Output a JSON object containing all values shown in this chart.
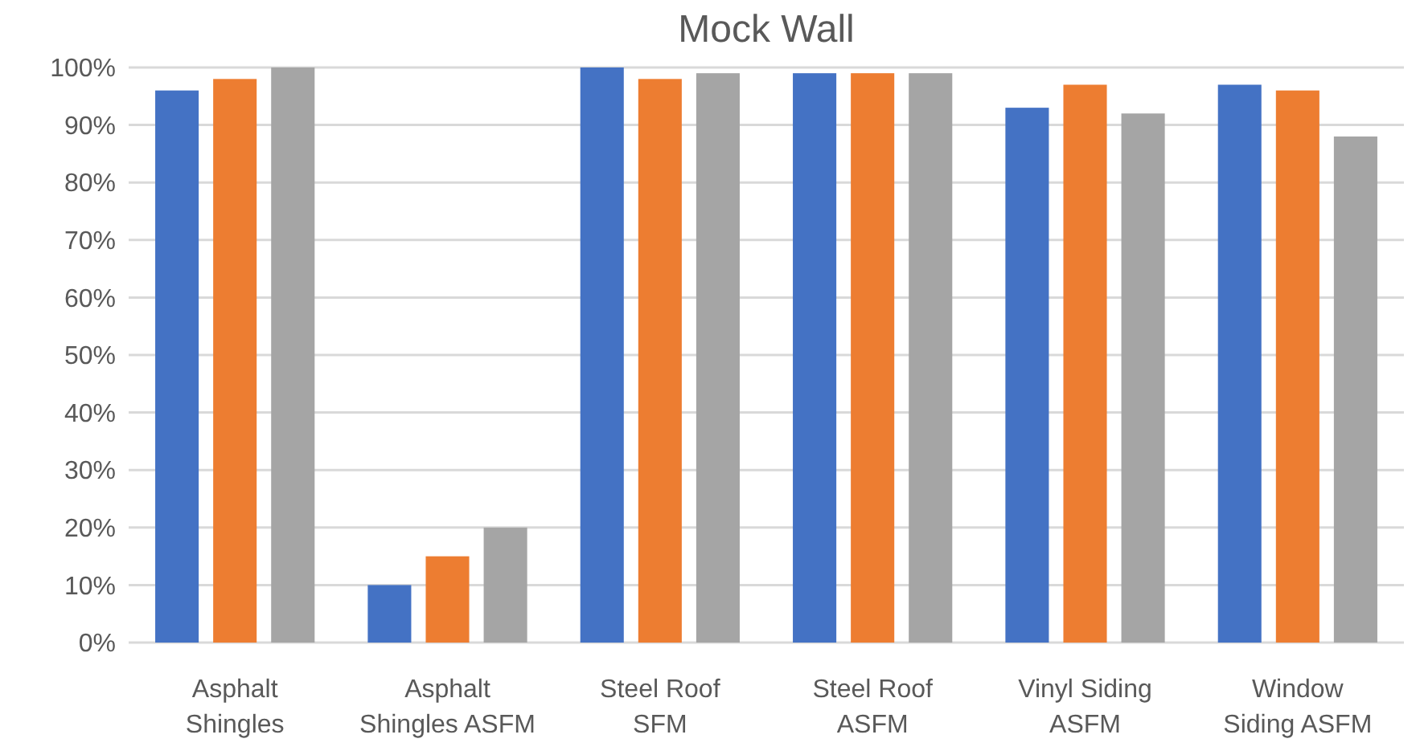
{
  "chart_data": {
    "type": "bar",
    "title": "Mock Wall",
    "categories": [
      "Asphalt\nShingles",
      "Asphalt\nShingles ASFM",
      "Steel Roof\nSFM",
      "Steel Roof\nASFM",
      "Vinyl Siding\nASFM",
      "Window\nSiding ASFM"
    ],
    "series": [
      {
        "color": "#4472c4",
        "values": [
          96,
          10,
          100,
          99,
          93,
          97
        ]
      },
      {
        "color": "#ed7d31",
        "values": [
          98,
          15,
          98,
          99,
          97,
          96
        ]
      },
      {
        "color": "#a5a5a5",
        "values": [
          100,
          20,
          99,
          99,
          92,
          88
        ]
      }
    ],
    "ylim": [
      0,
      100
    ],
    "yticks": [
      {
        "value": 0,
        "label": "0%"
      },
      {
        "value": 10,
        "label": "10%"
      },
      {
        "value": 20,
        "label": "20%"
      },
      {
        "value": 30,
        "label": "30%"
      },
      {
        "value": 40,
        "label": "40%"
      },
      {
        "value": 50,
        "label": "50%"
      },
      {
        "value": 60,
        "label": "60%"
      },
      {
        "value": 70,
        "label": "70%"
      },
      {
        "value": 80,
        "label": "80%"
      },
      {
        "value": 90,
        "label": "90%"
      },
      {
        "value": 100,
        "label": "100%"
      }
    ],
    "grid": "y"
  }
}
